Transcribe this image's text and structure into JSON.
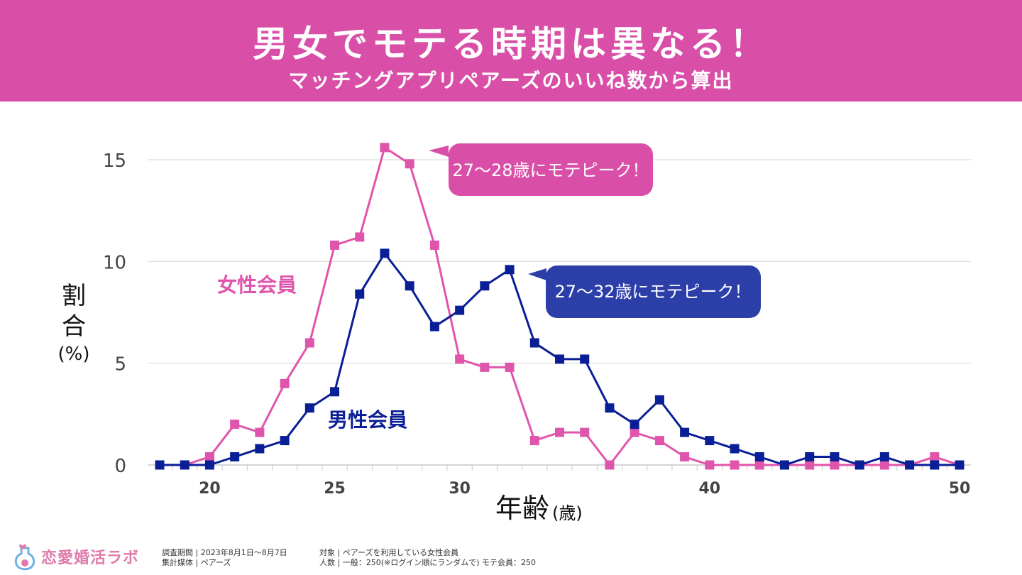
{
  "header": {
    "title": "男女でモテる時期は異なる！",
    "subtitle": "マッチングアプリペアーズのいいね数から算出"
  },
  "colors": {
    "female": "#e055ac",
    "male": "#0a1e96",
    "header_bg": "#d94fa8"
  },
  "chart_data": {
    "type": "line",
    "x": [
      18,
      19,
      20,
      21,
      22,
      23,
      24,
      25,
      26,
      27,
      28,
      29,
      30,
      31,
      32,
      33,
      34,
      35,
      36,
      37,
      38,
      39,
      40,
      41,
      42,
      43,
      44,
      45,
      46,
      47,
      48,
      49,
      50
    ],
    "series": [
      {
        "name": "女性会員",
        "values": [
          0,
          0,
          0.4,
          2.0,
          1.6,
          4.0,
          6.0,
          10.8,
          11.2,
          15.6,
          14.8,
          10.8,
          5.2,
          4.8,
          4.8,
          1.2,
          1.6,
          1.6,
          0,
          1.6,
          1.2,
          0.4,
          0,
          0,
          0,
          0,
          0,
          0,
          0,
          0,
          0,
          0.4,
          0
        ]
      },
      {
        "name": "男性会員",
        "values": [
          0,
          0,
          0,
          0.4,
          0.8,
          1.2,
          2.8,
          3.6,
          8.4,
          10.4,
          8.8,
          6.8,
          7.6,
          8.8,
          9.6,
          6.0,
          5.2,
          5.2,
          2.8,
          2.0,
          3.2,
          1.6,
          1.2,
          0.8,
          0.4,
          0,
          0.4,
          0.4,
          0,
          0.4,
          0,
          0,
          0
        ]
      }
    ],
    "xticks": [
      20,
      25,
      30,
      40,
      50
    ],
    "yticks": [
      0,
      5,
      10,
      15
    ],
    "xlim": [
      18,
      50
    ],
    "ylim": [
      0,
      15
    ],
    "xlabel_main": "年齢",
    "xlabel_unit": "(歳)",
    "ylabel_main": "割合",
    "ylabel_unit": "(%)",
    "grid": true,
    "annotations": {
      "female_peak": "27～28歳にモテピーク！",
      "male_peak": "27～32歳にモテピーク！"
    }
  },
  "footer": {
    "logo_text": "恋愛婚活ラボ",
    "survey_period": "調査期間 | 2023年8月1日～8月7日",
    "media": "集計媒体 | ペアーズ",
    "target": "対象 | ペアーズを利用している女性会員",
    "count": "人数 | 一般：250(※ログイン順にランダムで) モテ会員：250"
  }
}
